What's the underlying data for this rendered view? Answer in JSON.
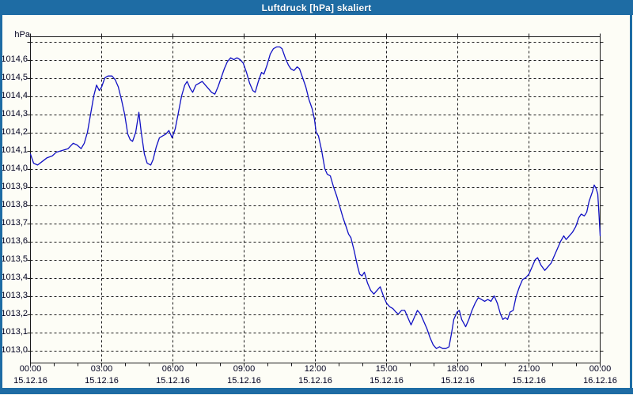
{
  "window": {
    "title": "Luftdruck [hPa] skaliert",
    "titlebar_color": "#1E6CA4",
    "frame_color": "#1E6CA4",
    "background_color": "#FDFDF6"
  },
  "chart_data": {
    "type": "line",
    "title": "Luftdruck [hPa] skaliert",
    "ylabel": "hPa",
    "xlabel": "",
    "grid": "dashed",
    "legend": "none",
    "line_color": "#1111C4",
    "grid_color": "#1A1A1A",
    "label_color": "#00001E",
    "ylim": [
      1012.93,
      1014.73
    ],
    "xlim_minutes": [
      0,
      1440
    ],
    "minor_x_tick_minutes": 60,
    "major_x_tick_minutes": 180,
    "y_grid_step": 0.1,
    "y_grid_top_unlabeled": 1014.7,
    "y_ticks": [
      {
        "v": 1014.6,
        "label": "1014,6"
      },
      {
        "v": 1014.5,
        "label": "1014,5"
      },
      {
        "v": 1014.4,
        "label": "1014,4"
      },
      {
        "v": 1014.3,
        "label": "1014,3"
      },
      {
        "v": 1014.2,
        "label": "1014,2"
      },
      {
        "v": 1014.1,
        "label": "1014,1"
      },
      {
        "v": 1014.0,
        "label": "1014,0"
      },
      {
        "v": 1013.9,
        "label": "1013,9"
      },
      {
        "v": 1013.8,
        "label": "1013,8"
      },
      {
        "v": 1013.7,
        "label": "1013,7"
      },
      {
        "v": 1013.6,
        "label": "1013,6"
      },
      {
        "v": 1013.5,
        "label": "1013,5"
      },
      {
        "v": 1013.4,
        "label": "1013,4"
      },
      {
        "v": 1013.3,
        "label": "1013,3"
      },
      {
        "v": 1013.2,
        "label": "1013,2"
      },
      {
        "v": 1013.1,
        "label": "1013,1"
      },
      {
        "v": 1013.0,
        "label": "1013,0"
      }
    ],
    "x_ticks": [
      {
        "minutes": 0,
        "time": "00:00",
        "date": "15.12.16"
      },
      {
        "minutes": 180,
        "time": "03:00",
        "date": "15.12.16"
      },
      {
        "minutes": 360,
        "time": "06:00",
        "date": "15.12.16"
      },
      {
        "minutes": 540,
        "time": "09:00",
        "date": "15.12.16"
      },
      {
        "minutes": 720,
        "time": "12:00",
        "date": "15.12.16"
      },
      {
        "minutes": 900,
        "time": "15:00",
        "date": "15.12.16"
      },
      {
        "minutes": 1080,
        "time": "18:00",
        "date": "15.12.16"
      },
      {
        "minutes": 1260,
        "time": "21:00",
        "date": "15.12.16"
      },
      {
        "minutes": 1440,
        "time": "00:00",
        "date": "16.12.16"
      }
    ],
    "series": [
      {
        "name": "Luftdruck",
        "points": [
          [
            0,
            1014.08
          ],
          [
            8,
            1014.03
          ],
          [
            18,
            1014.02
          ],
          [
            30,
            1014.04
          ],
          [
            42,
            1014.06
          ],
          [
            55,
            1014.07
          ],
          [
            65,
            1014.09
          ],
          [
            80,
            1014.1
          ],
          [
            95,
            1014.11
          ],
          [
            108,
            1014.14
          ],
          [
            118,
            1014.13
          ],
          [
            128,
            1014.11
          ],
          [
            136,
            1014.14
          ],
          [
            144,
            1014.2
          ],
          [
            152,
            1014.3
          ],
          [
            160,
            1014.4
          ],
          [
            167,
            1014.46
          ],
          [
            174,
            1014.43
          ],
          [
            180,
            1014.45
          ],
          [
            188,
            1014.5
          ],
          [
            196,
            1014.51
          ],
          [
            206,
            1014.51
          ],
          [
            214,
            1014.49
          ],
          [
            222,
            1014.45
          ],
          [
            230,
            1014.38
          ],
          [
            238,
            1014.3
          ],
          [
            246,
            1014.19
          ],
          [
            252,
            1014.16
          ],
          [
            258,
            1014.15
          ],
          [
            266,
            1014.2
          ],
          [
            274,
            1014.31
          ],
          [
            280,
            1014.2
          ],
          [
            288,
            1014.08
          ],
          [
            295,
            1014.03
          ],
          [
            304,
            1014.02
          ],
          [
            310,
            1014.05
          ],
          [
            318,
            1014.12
          ],
          [
            326,
            1014.17
          ],
          [
            334,
            1014.18
          ],
          [
            342,
            1014.19
          ],
          [
            350,
            1014.21
          ],
          [
            358,
            1014.17
          ],
          [
            366,
            1014.22
          ],
          [
            374,
            1014.31
          ],
          [
            382,
            1014.4
          ],
          [
            390,
            1014.46
          ],
          [
            396,
            1014.48
          ],
          [
            404,
            1014.44
          ],
          [
            410,
            1014.42
          ],
          [
            418,
            1014.46
          ],
          [
            426,
            1014.47
          ],
          [
            434,
            1014.48
          ],
          [
            442,
            1014.46
          ],
          [
            450,
            1014.44
          ],
          [
            458,
            1014.42
          ],
          [
            466,
            1014.41
          ],
          [
            474,
            1014.45
          ],
          [
            482,
            1014.5
          ],
          [
            490,
            1014.55
          ],
          [
            498,
            1014.59
          ],
          [
            506,
            1014.61
          ],
          [
            514,
            1014.6
          ],
          [
            522,
            1014.61
          ],
          [
            530,
            1014.6
          ],
          [
            538,
            1014.58
          ],
          [
            546,
            1014.53
          ],
          [
            554,
            1014.47
          ],
          [
            562,
            1014.43
          ],
          [
            568,
            1014.42
          ],
          [
            576,
            1014.48
          ],
          [
            584,
            1014.53
          ],
          [
            590,
            1014.52
          ],
          [
            598,
            1014.57
          ],
          [
            606,
            1014.63
          ],
          [
            614,
            1014.66
          ],
          [
            622,
            1014.67
          ],
          [
            630,
            1014.67
          ],
          [
            636,
            1014.66
          ],
          [
            644,
            1014.61
          ],
          [
            652,
            1014.57
          ],
          [
            658,
            1014.55
          ],
          [
            666,
            1014.54
          ],
          [
            674,
            1014.56
          ],
          [
            680,
            1014.55
          ],
          [
            688,
            1014.5
          ],
          [
            696,
            1014.45
          ],
          [
            704,
            1014.38
          ],
          [
            712,
            1014.33
          ],
          [
            718,
            1014.27
          ],
          [
            722,
            1014.2
          ],
          [
            728,
            1014.18
          ],
          [
            736,
            1014.1
          ],
          [
            744,
            1014.0
          ],
          [
            750,
            1013.97
          ],
          [
            758,
            1013.96
          ],
          [
            766,
            1013.9
          ],
          [
            774,
            1013.85
          ],
          [
            782,
            1013.79
          ],
          [
            790,
            1013.73
          ],
          [
            798,
            1013.68
          ],
          [
            804,
            1013.64
          ],
          [
            810,
            1013.62
          ],
          [
            818,
            1013.55
          ],
          [
            826,
            1013.47
          ],
          [
            832,
            1013.42
          ],
          [
            838,
            1013.41
          ],
          [
            844,
            1013.43
          ],
          [
            852,
            1013.37
          ],
          [
            860,
            1013.33
          ],
          [
            868,
            1013.31
          ],
          [
            876,
            1013.33
          ],
          [
            884,
            1013.35
          ],
          [
            892,
            1013.3
          ],
          [
            900,
            1013.26
          ],
          [
            908,
            1013.24
          ],
          [
            916,
            1013.23
          ],
          [
            924,
            1013.21
          ],
          [
            930,
            1013.2
          ],
          [
            938,
            1013.22
          ],
          [
            946,
            1013.22
          ],
          [
            954,
            1013.18
          ],
          [
            962,
            1013.14
          ],
          [
            970,
            1013.18
          ],
          [
            978,
            1013.22
          ],
          [
            986,
            1013.2
          ],
          [
            994,
            1013.16
          ],
          [
            1002,
            1013.12
          ],
          [
            1010,
            1013.07
          ],
          [
            1018,
            1013.03
          ],
          [
            1026,
            1013.01
          ],
          [
            1034,
            1013.02
          ],
          [
            1042,
            1013.01
          ],
          [
            1050,
            1013.01
          ],
          [
            1058,
            1013.02
          ],
          [
            1064,
            1013.09
          ],
          [
            1070,
            1013.17
          ],
          [
            1078,
            1013.21
          ],
          [
            1084,
            1013.22
          ],
          [
            1090,
            1013.17
          ],
          [
            1100,
            1013.13
          ],
          [
            1108,
            1013.17
          ],
          [
            1116,
            1013.22
          ],
          [
            1124,
            1013.26
          ],
          [
            1132,
            1013.29
          ],
          [
            1140,
            1013.28
          ],
          [
            1148,
            1013.27
          ],
          [
            1156,
            1013.28
          ],
          [
            1164,
            1013.27
          ],
          [
            1172,
            1013.3
          ],
          [
            1180,
            1013.26
          ],
          [
            1188,
            1013.2
          ],
          [
            1194,
            1013.17
          ],
          [
            1200,
            1013.18
          ],
          [
            1206,
            1013.17
          ],
          [
            1212,
            1013.21
          ],
          [
            1220,
            1013.22
          ],
          [
            1228,
            1013.3
          ],
          [
            1236,
            1013.35
          ],
          [
            1244,
            1013.39
          ],
          [
            1252,
            1013.4
          ],
          [
            1260,
            1013.42
          ],
          [
            1268,
            1013.46
          ],
          [
            1276,
            1013.5
          ],
          [
            1282,
            1013.51
          ],
          [
            1290,
            1013.47
          ],
          [
            1300,
            1013.44
          ],
          [
            1308,
            1013.46
          ],
          [
            1316,
            1013.48
          ],
          [
            1324,
            1013.52
          ],
          [
            1332,
            1013.56
          ],
          [
            1340,
            1013.6
          ],
          [
            1348,
            1013.63
          ],
          [
            1354,
            1013.61
          ],
          [
            1362,
            1013.63
          ],
          [
            1370,
            1013.65
          ],
          [
            1378,
            1013.68
          ],
          [
            1386,
            1013.73
          ],
          [
            1392,
            1013.75
          ],
          [
            1400,
            1013.74
          ],
          [
            1406,
            1013.76
          ],
          [
            1412,
            1013.82
          ],
          [
            1420,
            1013.87
          ],
          [
            1425,
            1013.91
          ],
          [
            1430,
            1013.89
          ],
          [
            1434,
            1013.86
          ],
          [
            1437,
            1013.75
          ],
          [
            1440,
            1013.63
          ]
        ]
      }
    ]
  }
}
